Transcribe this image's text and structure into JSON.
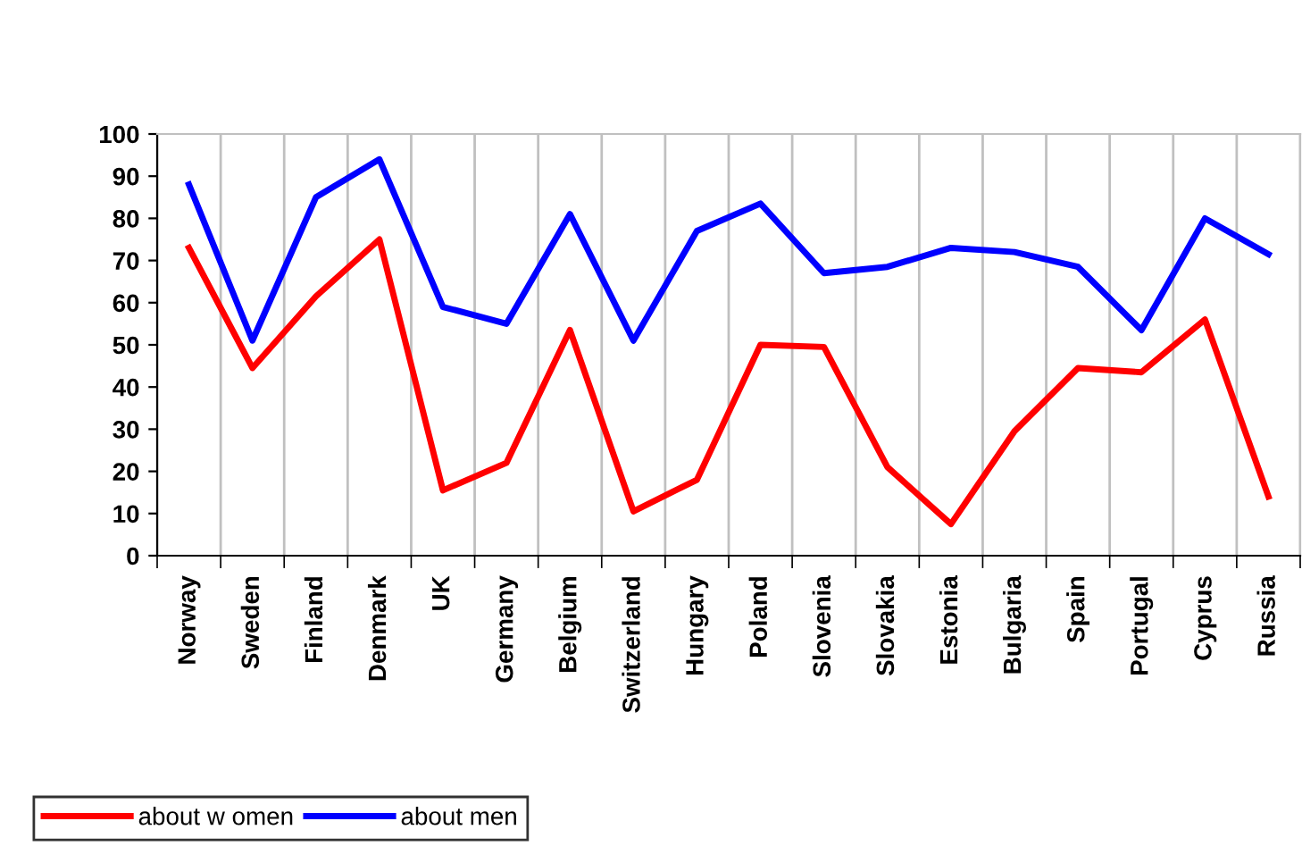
{
  "chart_data": {
    "type": "line",
    "categories": [
      "Norway",
      "Sweden",
      "Finland",
      "Denmark",
      "UK",
      "Germany",
      "Belgium",
      "Switzerland",
      "Hungary",
      "Poland",
      "Slovenia",
      "Slovakia",
      "Estonia",
      "Bulgaria",
      "Spain",
      "Portugal",
      "Cyprus",
      "Russia"
    ],
    "series": [
      {
        "name": "about w omen",
        "color": "#ff0000",
        "values": [
          73,
          44.5,
          61.5,
          75,
          15.5,
          22,
          53.5,
          10.5,
          18,
          50,
          49.5,
          21,
          7.5,
          29.5,
          44.5,
          43.5,
          56,
          14
        ]
      },
      {
        "name": "about men",
        "color": "#0000ff",
        "values": [
          88,
          51,
          85,
          94,
          59,
          55,
          81,
          51,
          77,
          83.5,
          67,
          68.5,
          73,
          72,
          68.5,
          53.5,
          80,
          71.5
        ]
      }
    ],
    "ylim": [
      0,
      100
    ],
    "yticks": [
      0,
      10,
      20,
      30,
      40,
      50,
      60,
      70,
      80,
      90,
      100
    ],
    "grid": "x",
    "legend": "bottom left",
    "marker": "none",
    "line_style": "solid"
  }
}
